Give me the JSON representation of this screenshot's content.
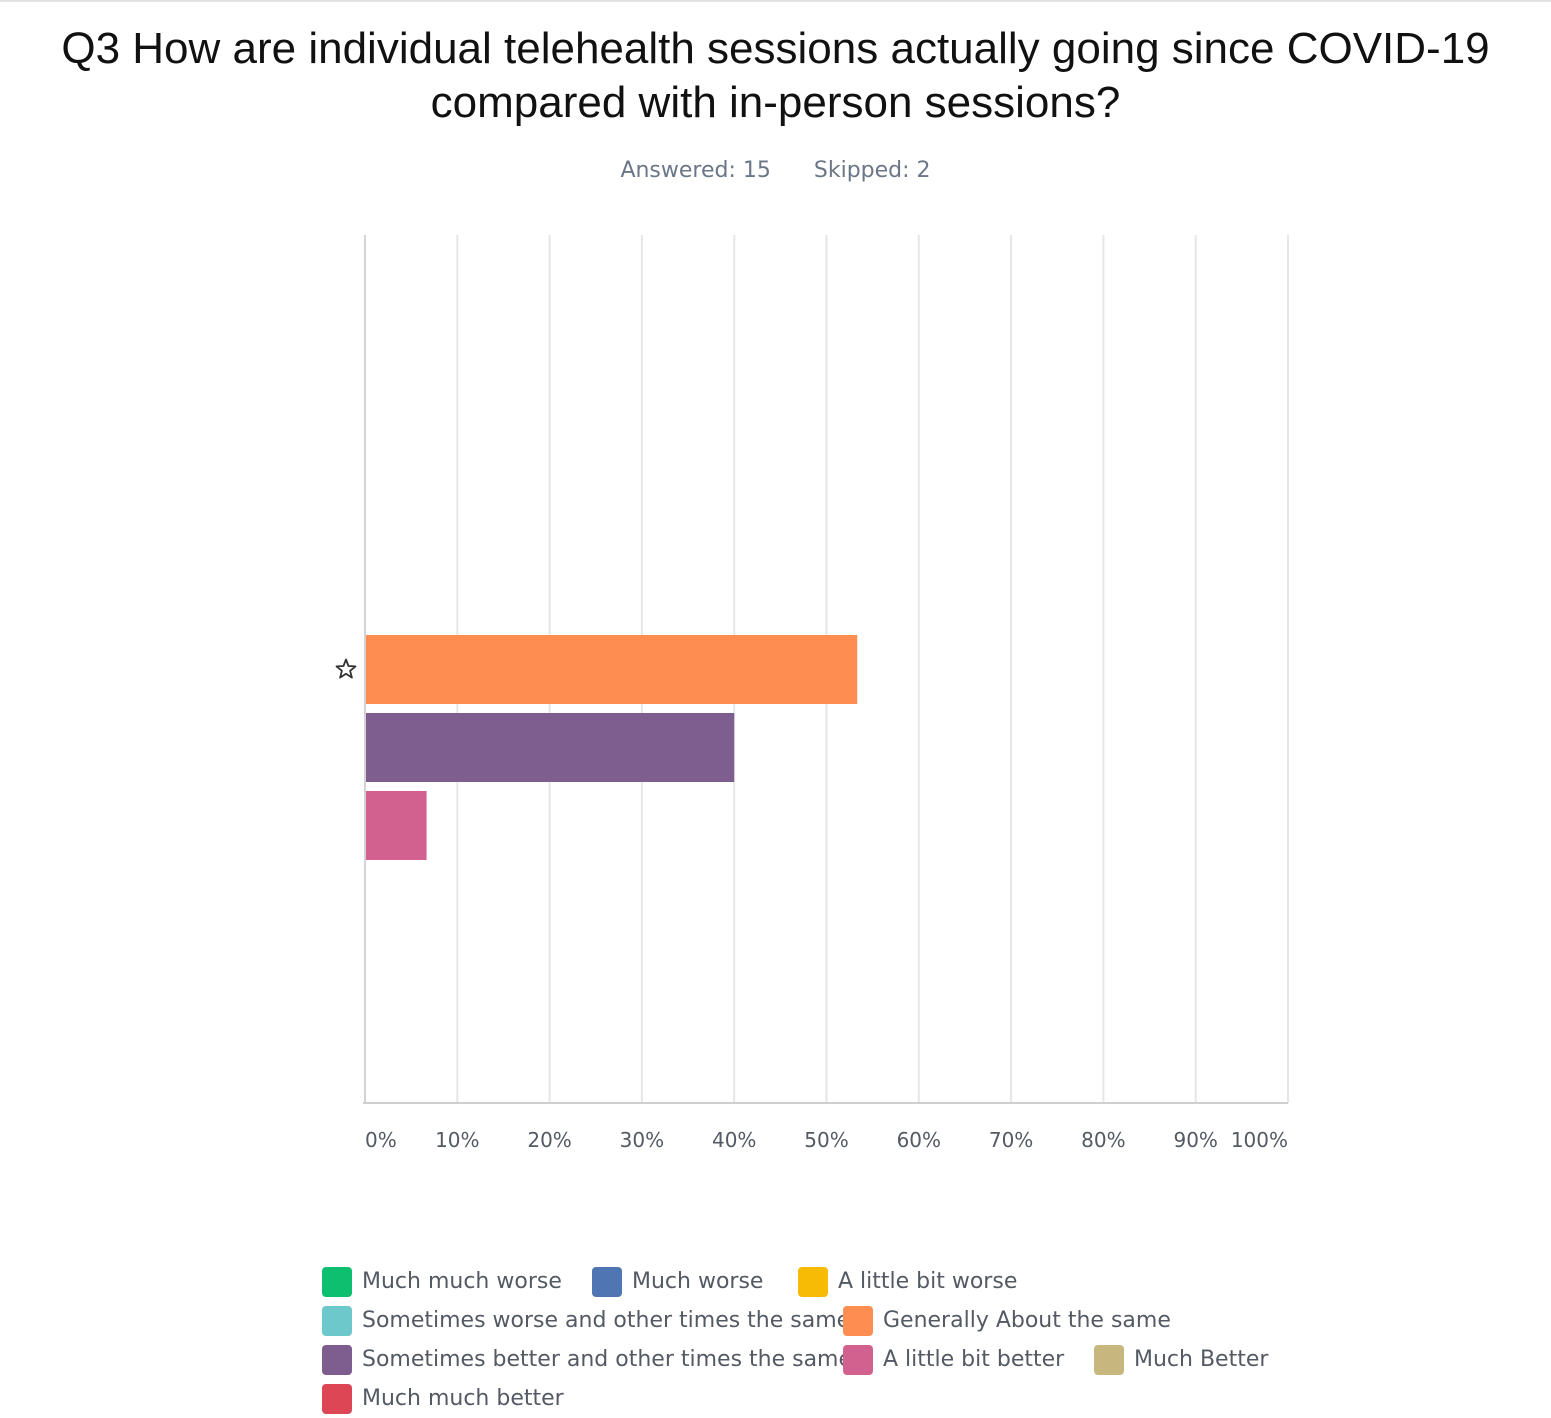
{
  "header": {
    "title": "Q3 How are individual telehealth sessions actually going since COVID-19 compared with in-person sessions?",
    "answered": "Answered: 15",
    "skipped": "Skipped: 2"
  },
  "chart_data": {
    "type": "bar",
    "orientation": "horizontal",
    "title": "Q3 How are individual telehealth sessions actually going since COVID-19 compared with in-person sessions?",
    "xlabel": "",
    "ylabel": "",
    "xlim": [
      0,
      100
    ],
    "x_unit": "%",
    "x_ticks": [
      "0%",
      "10%",
      "20%",
      "30%",
      "40%",
      "50%",
      "60%",
      "70%",
      "80%",
      "90%",
      "100%"
    ],
    "grid": "vertical",
    "legend_position": "bottom",
    "categories": [
      "Much much worse",
      "Much worse",
      "A little bit worse",
      "Sometimes worse and other times the same",
      "Generally About the same",
      "Sometimes better and other times the same",
      "A little bit better",
      "Much Better",
      "Much much better"
    ],
    "series": [
      {
        "name": "Much much worse",
        "value": 0,
        "color": "#0dbf6e"
      },
      {
        "name": "Much worse",
        "value": 0,
        "color": "#4f76b3"
      },
      {
        "name": "A little bit worse",
        "value": 0,
        "color": "#f7bb06"
      },
      {
        "name": "Sometimes worse and other times the same",
        "value": 0,
        "color": "#6dc8cb"
      },
      {
        "name": "Generally About the same",
        "value": 53.33,
        "color": "#fd8d51"
      },
      {
        "name": "Sometimes better and other times the same",
        "value": 40,
        "color": "#7e5e8f"
      },
      {
        "name": "A little bit better",
        "value": 6.67,
        "color": "#d2618f"
      },
      {
        "name": "Much Better",
        "value": 0,
        "color": "#c7b67d"
      },
      {
        "name": "Much much better",
        "value": 0,
        "color": "#dc4655"
      }
    ],
    "highlighted_series": "Generally About the same"
  },
  "legend": {
    "rows": [
      [
        0,
        1,
        2
      ],
      [
        3,
        4
      ],
      [
        5,
        6,
        7
      ],
      [
        8
      ]
    ]
  },
  "icons": {
    "highlight_marker": "star-outline-icon"
  }
}
